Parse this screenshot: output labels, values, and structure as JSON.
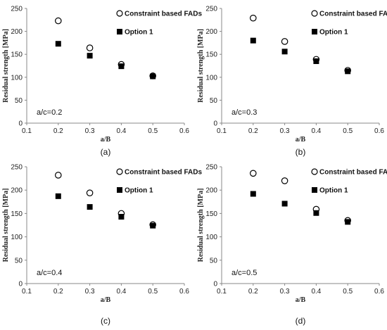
{
  "chart_data": [
    {
      "type": "scatter",
      "panel_label": "(a)",
      "annotation": "a/c=0.2",
      "xlabel": "a/B",
      "ylabel": "Residual strength [MPa]",
      "xlim": [
        0.1,
        0.6
      ],
      "ylim": [
        0,
        250
      ],
      "xticks": [
        "0.1",
        "0.2",
        "0.3",
        "0.4",
        "0.5",
        "0.6"
      ],
      "yticks": [
        "0",
        "50",
        "100",
        "150",
        "200",
        "250"
      ],
      "legend_position": "top-right",
      "grid": false,
      "series": [
        {
          "name": "Constraint based FADs",
          "marker": "open-circle",
          "x": [
            0.2,
            0.3,
            0.4,
            0.5
          ],
          "y": [
            223,
            164,
            128,
            103
          ]
        },
        {
          "name": "Option 1",
          "marker": "filled-square",
          "x": [
            0.2,
            0.3,
            0.4,
            0.5
          ],
          "y": [
            173,
            147,
            124,
            102
          ]
        }
      ]
    },
    {
      "type": "scatter",
      "panel_label": "(b)",
      "annotation": "a/c=0.3",
      "xlabel": "a/B",
      "ylabel": "Residual strength [MPa]",
      "xlim": [
        0.1,
        0.6
      ],
      "ylim": [
        0,
        250
      ],
      "xticks": [
        "0.1",
        "0.2",
        "0.3",
        "0.4",
        "0.5",
        "0.6"
      ],
      "yticks": [
        "0",
        "50",
        "100",
        "150",
        "200",
        "250"
      ],
      "legend_position": "top-right",
      "grid": false,
      "series": [
        {
          "name": "Constraint based FADs",
          "marker": "open-circle",
          "x": [
            0.2,
            0.3,
            0.4,
            0.5
          ],
          "y": [
            229,
            178,
            139,
            115
          ]
        },
        {
          "name": "Option 1",
          "marker": "filled-square",
          "x": [
            0.2,
            0.3,
            0.4,
            0.5
          ],
          "y": [
            180,
            156,
            135,
            113
          ]
        }
      ]
    },
    {
      "type": "scatter",
      "panel_label": "(c)",
      "annotation": "a/c=0.4",
      "xlabel": "a/B",
      "ylabel": "Residual strength [MPa]",
      "xlim": [
        0.1,
        0.6
      ],
      "ylim": [
        0,
        250
      ],
      "xticks": [
        "0.1",
        "0.2",
        "0.3",
        "0.4",
        "0.5",
        "0.6"
      ],
      "yticks": [
        "0",
        "50",
        "100",
        "150",
        "200",
        "250"
      ],
      "legend_position": "top-right",
      "grid": false,
      "series": [
        {
          "name": "Constraint based FADs",
          "marker": "open-circle",
          "x": [
            0.2,
            0.3,
            0.4,
            0.5
          ],
          "y": [
            232,
            194,
            150,
            126
          ]
        },
        {
          "name": "Option 1",
          "marker": "filled-square",
          "x": [
            0.2,
            0.3,
            0.4,
            0.5
          ],
          "y": [
            187,
            164,
            143,
            124
          ]
        }
      ]
    },
    {
      "type": "scatter",
      "panel_label": "(d)",
      "annotation": "a/c=0.5",
      "xlabel": "a/B",
      "ylabel": "Residual strength [MPa]",
      "xlim": [
        0.1,
        0.6
      ],
      "ylim": [
        0,
        250
      ],
      "xticks": [
        "0.1",
        "0.2",
        "0.3",
        "0.4",
        "0.5",
        "0.6"
      ],
      "yticks": [
        "0",
        "50",
        "100",
        "150",
        "200",
        "250"
      ],
      "legend_position": "top-right",
      "grid": false,
      "series": [
        {
          "name": "Constraint based FADs",
          "marker": "open-circle",
          "x": [
            0.2,
            0.3,
            0.4,
            0.5
          ],
          "y": [
            236,
            220,
            159,
            135
          ]
        },
        {
          "name": "Option 1",
          "marker": "filled-square",
          "x": [
            0.2,
            0.3,
            0.4,
            0.5
          ],
          "y": [
            192,
            171,
            151,
            132
          ]
        }
      ]
    }
  ],
  "colors": {
    "marker": "#000000",
    "axis": "#888888"
  }
}
